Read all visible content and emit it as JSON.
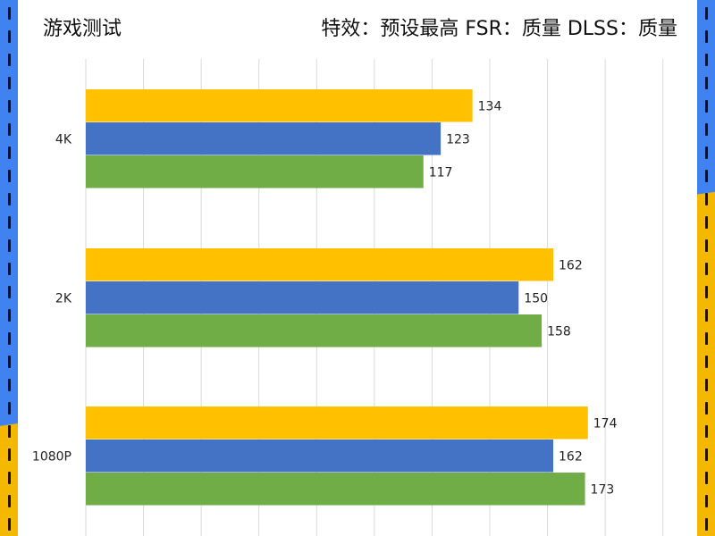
{
  "header": {
    "title": "游戏测试",
    "subtitle": "特效：预设最高  FSR：质量 DLSS：质量"
  },
  "colors": {
    "blue_strip": "#3f82f0",
    "yellow_strip": "#f5b800",
    "grid": "#d9d9d9"
  },
  "chart_data": {
    "type": "bar",
    "orientation": "horizontal",
    "categories": [
      "4K",
      "2K",
      "1080P"
    ],
    "series": [
      {
        "color": "#ffc000",
        "values": [
          134,
          162,
          174
        ]
      },
      {
        "color": "#4472c4",
        "values": [
          123,
          150,
          162
        ]
      },
      {
        "color": "#70ad47",
        "values": [
          117,
          158,
          173
        ]
      }
    ],
    "xlim": [
      0,
      210
    ],
    "grid": true,
    "legend": "none"
  }
}
